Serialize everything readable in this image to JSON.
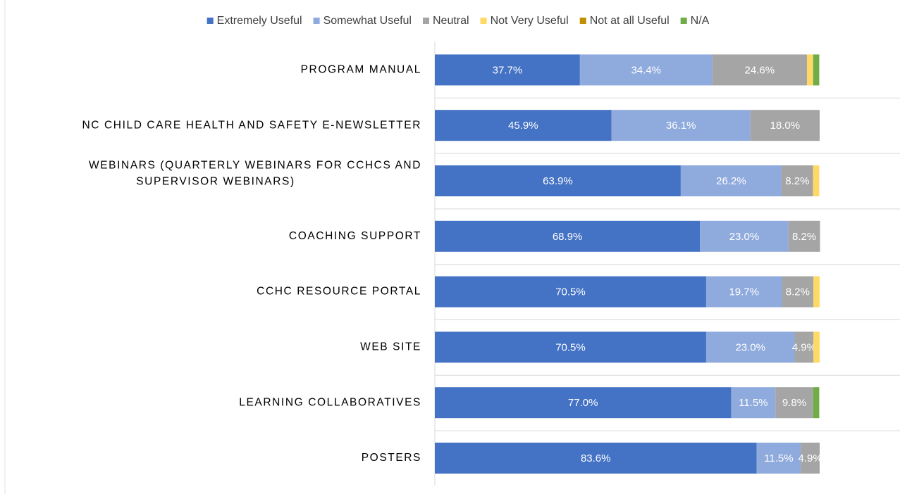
{
  "chart_data": {
    "type": "stacked-bar-horizontal",
    "categories": [
      "PROGRAM MANUAL",
      "NC CHILD CARE HEALTH AND SAFETY E-NEWSLETTER",
      "WEBINARS (QUARTERLY WEBINARS FOR CCHCS AND SUPERVISOR WEBINARS)",
      "COACHING SUPPORT",
      "CCHC RESOURCE PORTAL",
      "WEB SITE",
      "LEARNING COLLABORATIVES",
      "POSTERS"
    ],
    "xlim": [
      0,
      100
    ],
    "legend": "top",
    "series": [
      {
        "name": "Extremely Useful",
        "color": "#4472c4",
        "values": [
          37.7,
          45.9,
          63.9,
          68.9,
          70.5,
          70.5,
          77.0,
          83.6
        ],
        "value_labels": [
          "37.7%",
          "45.9%",
          "63.9%",
          "68.9%",
          "70.5%",
          "70.5%",
          "77.0%",
          "83.6%"
        ]
      },
      {
        "name": "Somewhat Useful",
        "color": "#8faadc",
        "values": [
          34.4,
          36.1,
          26.2,
          23.0,
          19.7,
          23.0,
          11.5,
          11.5
        ],
        "value_labels": [
          "34.4%",
          "36.1%",
          "26.2%",
          "23.0%",
          "19.7%",
          "23.0%",
          "11.5%",
          "11.5%"
        ]
      },
      {
        "name": "Neutral",
        "color": "#a5a5a5",
        "values": [
          24.6,
          18.0,
          8.2,
          8.2,
          8.2,
          4.9,
          9.8,
          4.9
        ],
        "value_labels": [
          "24.6%",
          "18.0%",
          "8.2%",
          "8.2%",
          "8.2%",
          "4.9%",
          "9.8%",
          "4.9%"
        ]
      },
      {
        "name": "Not Very Useful",
        "color": "#ffd966",
        "values": [
          1.6,
          0,
          1.6,
          0,
          1.6,
          1.6,
          0,
          0
        ],
        "value_labels": [
          null,
          null,
          null,
          null,
          null,
          null,
          null,
          null
        ]
      },
      {
        "name": "Not at all Useful",
        "color": "#bf9000",
        "values": [
          0,
          0,
          0,
          0,
          0,
          0,
          0,
          0
        ],
        "value_labels": [
          null,
          null,
          null,
          null,
          null,
          null,
          null,
          null
        ]
      },
      {
        "name": "N/A",
        "color": "#70ad47",
        "values": [
          1.6,
          0,
          0,
          0,
          0,
          0,
          1.6,
          0
        ],
        "value_labels": [
          null,
          null,
          null,
          null,
          null,
          null,
          null,
          null
        ]
      }
    ]
  }
}
